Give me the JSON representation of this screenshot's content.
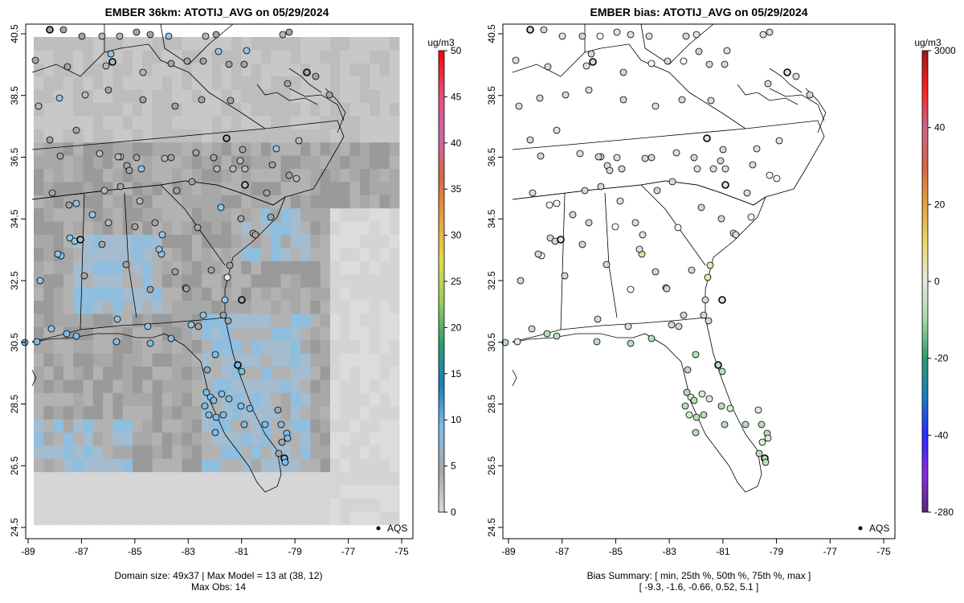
{
  "left_panel": {
    "title": "EMBER 36km: ATOTIJ_AVG on 05/29/2024",
    "x_ticks": [
      "-89",
      "-87",
      "-85",
      "-83",
      "-81",
      "-79",
      "-77",
      "-75"
    ],
    "y_ticks": [
      "24.5",
      "26.5",
      "28.5",
      "30.5",
      "32.5",
      "34.5",
      "36.5",
      "38.5",
      "40.5"
    ],
    "legend_label": "AQS",
    "footer_line1": "Domain size: 49x37 | Max Model = 13 at (38, 12)",
    "footer_line2": "Max Obs: 14",
    "colorbar": {
      "unit": "ug/m3",
      "labels": [
        "0",
        "5",
        "10",
        "15",
        "20",
        "25",
        "30",
        "35",
        "40",
        "45",
        "50"
      ],
      "colors": [
        "#d9d9d9",
        "#a6a6a6",
        "#7fbde8",
        "#1a7fbf",
        "#2a9d6e",
        "#9ccc5a",
        "#e0dc4a",
        "#e6a23c",
        "#d8664a",
        "#cc66aa",
        "#e84a7a",
        "#ff0000"
      ]
    }
  },
  "right_panel": {
    "title": "EMBER bias: ATOTIJ_AVG on 05/29/2024",
    "x_ticks": [
      "-89",
      "-87",
      "-85",
      "-83",
      "-81",
      "-79",
      "-77",
      "-75"
    ],
    "y_ticks": [
      "24.5",
      "26.5",
      "28.5",
      "30.5",
      "32.5",
      "34.5",
      "36.5",
      "38.5",
      "40.5"
    ],
    "legend_label": "AQS",
    "footer_line1": "Bias Summary: [ min, 25th %, 50th %, 75th %, max ]",
    "footer_line2": "[ -9.3,   -1.6,   -0.66,   0.52,   5.1 ]",
    "colorbar": {
      "unit": "ug/m3",
      "labels": [
        "3000",
        "40",
        "20",
        "0",
        "-20",
        "-40",
        "-280"
      ],
      "colors": [
        "#5a2a82",
        "#8a2be2",
        "#2a2aff",
        "#1a7fbf",
        "#2a9d6e",
        "#a8d8a8",
        "#e8e8e8",
        "#e8dc6a",
        "#e6a23c",
        "#d8664a",
        "#cc6688",
        "#ff2222",
        "#a01818"
      ]
    }
  }
}
